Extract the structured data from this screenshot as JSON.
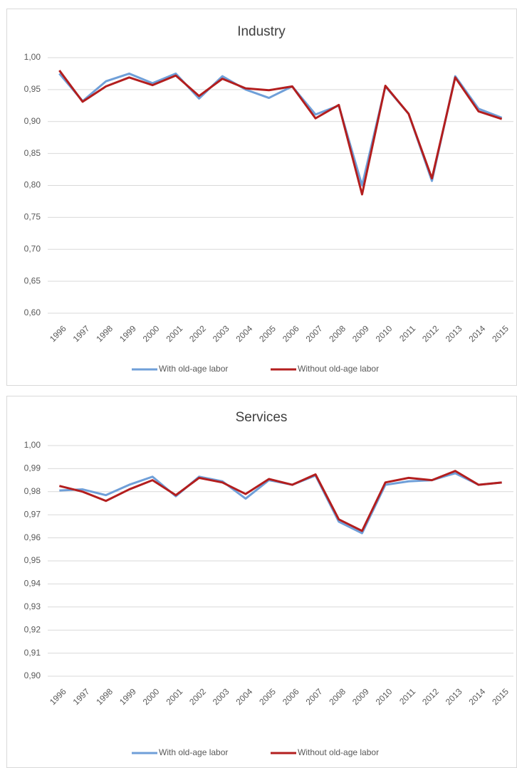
{
  "chart_data": [
    {
      "type": "line",
      "title": "Industry",
      "categories": [
        "1996",
        "1997",
        "1998",
        "1999",
        "2000",
        "2001",
        "2002",
        "2003",
        "2004",
        "2005",
        "2006",
        "2007",
        "2008",
        "2009",
        "2010",
        "2011",
        "2012",
        "2013",
        "2014",
        "2015"
      ],
      "series": [
        {
          "name": "With old-age labor",
          "color": "#6f9fd8",
          "values": [
            0.975,
            0.932,
            0.963,
            0.975,
            0.96,
            0.975,
            0.936,
            0.971,
            0.95,
            0.937,
            0.955,
            0.911,
            0.925,
            0.8,
            0.955,
            0.912,
            0.807,
            0.971,
            0.92,
            0.906
          ]
        },
        {
          "name": "Without old-age labor",
          "color": "#b31e1e",
          "values": [
            0.98,
            0.931,
            0.955,
            0.969,
            0.957,
            0.972,
            0.94,
            0.967,
            0.952,
            0.949,
            0.955,
            0.905,
            0.926,
            0.786,
            0.956,
            0.912,
            0.811,
            0.969,
            0.916,
            0.904
          ]
        }
      ],
      "ylim": [
        0.6,
        1.0
      ],
      "yticks": [
        {
          "value": 0.6,
          "label": "0,60"
        },
        {
          "value": 0.65,
          "label": "0,65"
        },
        {
          "value": 0.7,
          "label": "0,70"
        },
        {
          "value": 0.75,
          "label": "0,75"
        },
        {
          "value": 0.8,
          "label": "0,80"
        },
        {
          "value": 0.85,
          "label": "0,85"
        },
        {
          "value": 0.9,
          "label": "0,90"
        },
        {
          "value": 0.95,
          "label": "0,95"
        },
        {
          "value": 1.0,
          "label": "1,00"
        }
      ],
      "grid": true,
      "legend": "bottom"
    },
    {
      "type": "line",
      "title": "Services",
      "categories": [
        "1996",
        "1997",
        "1998",
        "1999",
        "2000",
        "2001",
        "2002",
        "2003",
        "2004",
        "2005",
        "2006",
        "2007",
        "2008",
        "2009",
        "2010",
        "2011",
        "2012",
        "2013",
        "2014",
        "2015"
      ],
      "series": [
        {
          "name": "With old-age labor",
          "color": "#6f9fd8",
          "values": [
            0.9805,
            0.981,
            0.9785,
            0.983,
            0.9865,
            0.978,
            0.9865,
            0.9845,
            0.977,
            0.985,
            0.983,
            0.987,
            0.967,
            0.962,
            0.983,
            0.9845,
            0.985,
            0.988,
            0.983,
            0.984
          ]
        },
        {
          "name": "Without old-age labor",
          "color": "#b31e1e",
          "values": [
            0.9825,
            0.98,
            0.976,
            0.981,
            0.985,
            0.9785,
            0.986,
            0.984,
            0.979,
            0.9855,
            0.983,
            0.9875,
            0.968,
            0.963,
            0.984,
            0.986,
            0.985,
            0.989,
            0.983,
            0.984
          ]
        }
      ],
      "ylim": [
        0.9,
        1.0
      ],
      "yticks": [
        {
          "value": 0.9,
          "label": "0,90"
        },
        {
          "value": 0.91,
          "label": "0,91"
        },
        {
          "value": 0.92,
          "label": "0,92"
        },
        {
          "value": 0.93,
          "label": "0,93"
        },
        {
          "value": 0.94,
          "label": "0,94"
        },
        {
          "value": 0.95,
          "label": "0,95"
        },
        {
          "value": 0.96,
          "label": "0,96"
        },
        {
          "value": 0.97,
          "label": "0,97"
        },
        {
          "value": 0.98,
          "label": "0,98"
        },
        {
          "value": 0.99,
          "label": "0,99"
        },
        {
          "value": 1.0,
          "label": "1,00"
        }
      ],
      "grid": true,
      "legend": "bottom"
    }
  ]
}
